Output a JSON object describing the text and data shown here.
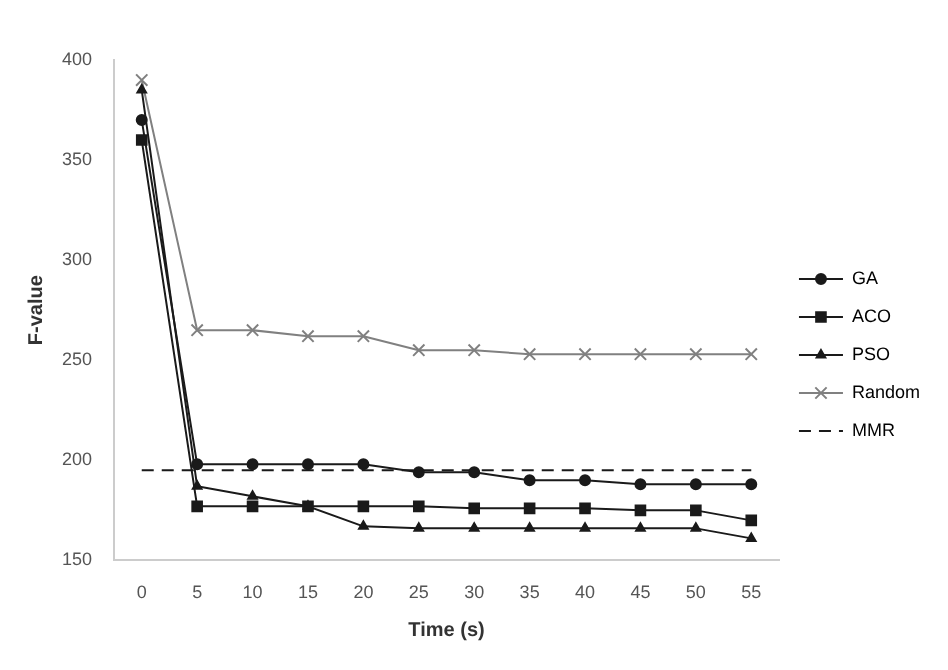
{
  "chart_data": {
    "type": "line",
    "xlabel": "Time (s)",
    "ylabel": "F-value",
    "categories": [
      "0",
      "5",
      "10",
      "15",
      "20",
      "25",
      "30",
      "35",
      "40",
      "45",
      "50",
      "55"
    ],
    "ylim": [
      150,
      400
    ],
    "yticks": [
      150,
      200,
      250,
      300,
      350,
      400
    ],
    "grid": false,
    "legend": "right",
    "series": [
      {
        "name": "GA",
        "color": "#1a1a1a",
        "marker": "circle",
        "values": [
          370,
          198,
          198,
          198,
          198,
          194,
          194,
          190,
          190,
          188,
          188,
          188
        ]
      },
      {
        "name": "ACO",
        "color": "#1a1a1a",
        "marker": "square",
        "values": [
          360,
          177,
          177,
          177,
          177,
          177,
          176,
          176,
          176,
          175,
          175,
          170
        ]
      },
      {
        "name": "PSO",
        "color": "#1a1a1a",
        "marker": "triangle",
        "values": [
          385,
          187,
          182,
          177,
          167,
          166,
          166,
          166,
          166,
          166,
          166,
          161
        ]
      },
      {
        "name": "Random",
        "color": "#808080",
        "marker": "cross",
        "values": [
          390,
          265,
          265,
          262,
          262,
          255,
          255,
          253,
          253,
          253,
          253,
          253
        ]
      },
      {
        "name": "MMR",
        "color": "#1a1a1a",
        "marker": "none",
        "line_style": "dashed",
        "values": [
          195,
          195,
          195,
          195,
          195,
          195,
          195,
          195,
          195,
          195,
          195,
          195
        ]
      }
    ]
  }
}
